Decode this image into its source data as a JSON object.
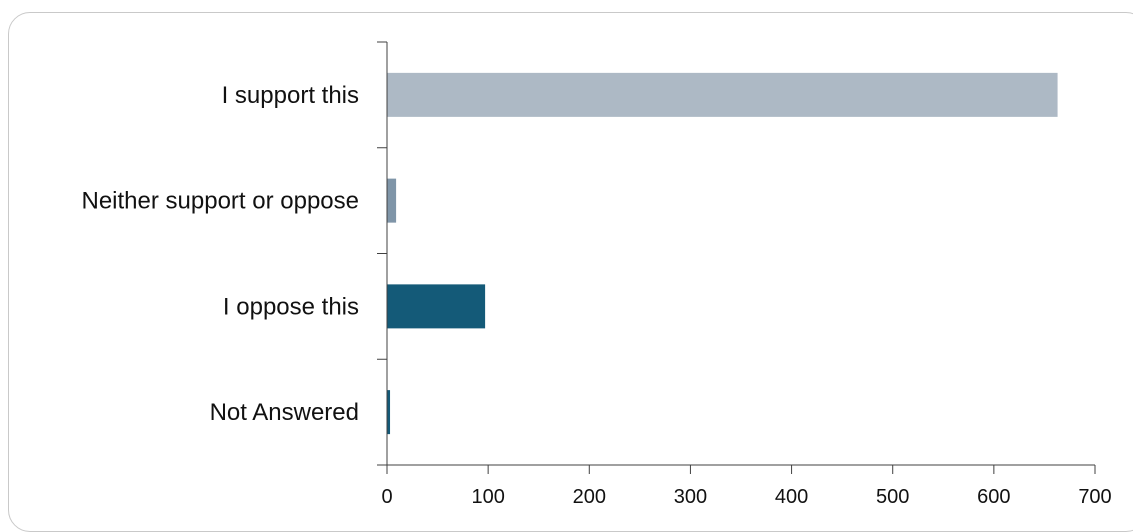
{
  "chart_data": {
    "type": "bar",
    "orientation": "horizontal",
    "categories": [
      "I support this",
      "Neither support or oppose",
      "I oppose this",
      "Not Answered"
    ],
    "values": [
      663,
      9,
      97,
      3
    ],
    "colors": [
      "#adb9c5",
      "#7f95a8",
      "#145a78",
      "#145a78"
    ],
    "xlim": [
      0,
      700
    ],
    "xticks": [
      0,
      100,
      200,
      300,
      400,
      500,
      600,
      700
    ],
    "grid": false,
    "title": "",
    "xlabel": "",
    "ylabel": ""
  },
  "style": {
    "axis_color": "#404040",
    "frame_color": "#c9c9c9"
  }
}
